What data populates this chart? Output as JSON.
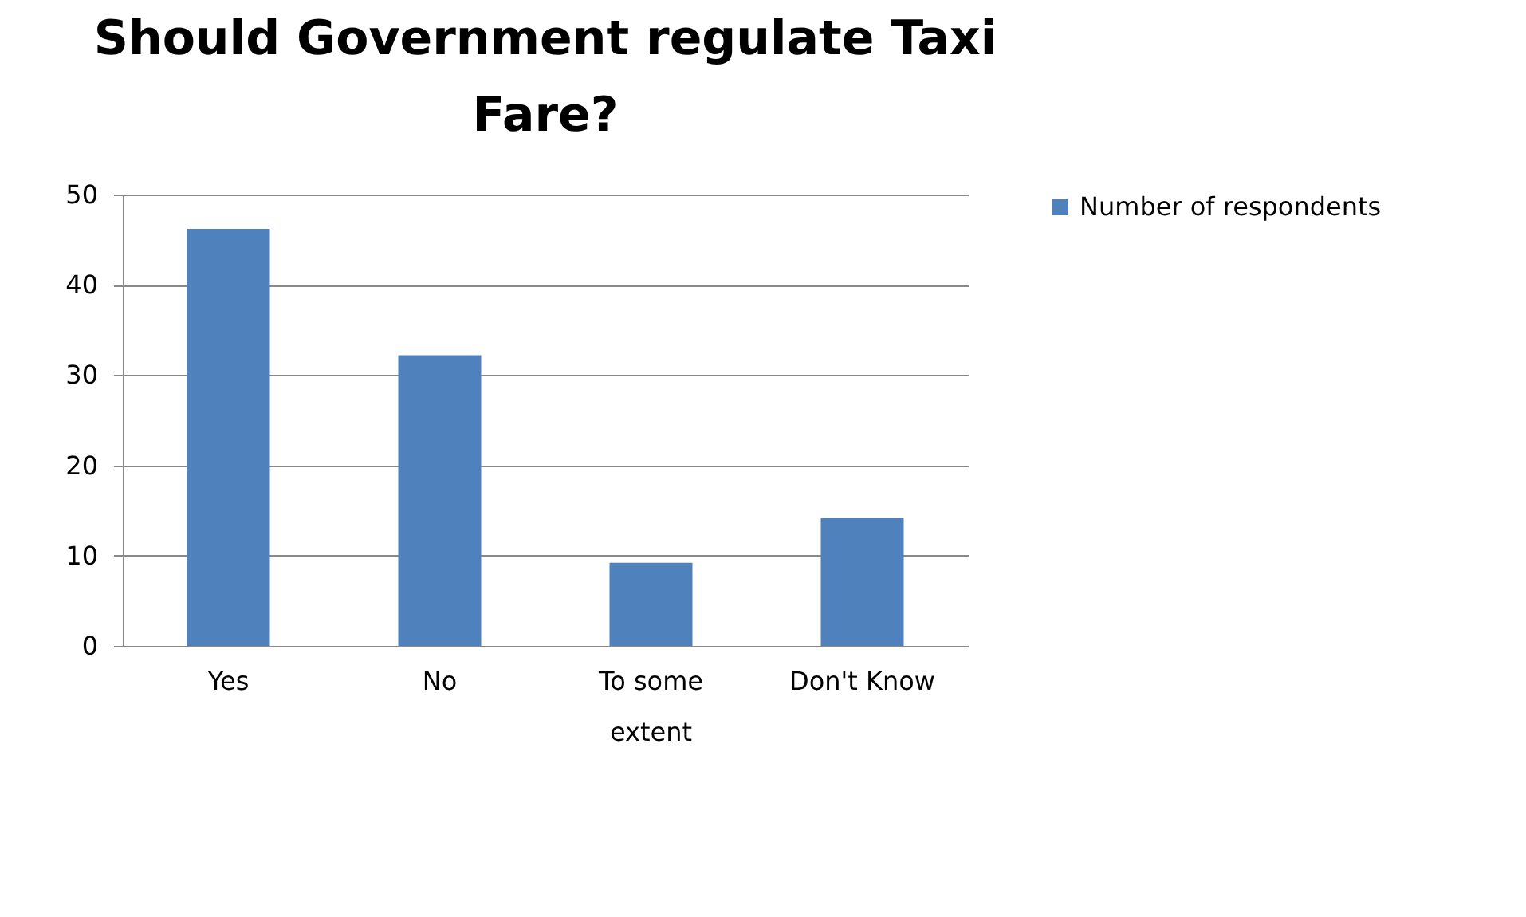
{
  "chart_data": {
    "type": "bar",
    "title": "Should Government regulate Taxi Fare?",
    "categories": [
      "Yes",
      "No",
      "To some extent",
      "Don't Know"
    ],
    "series": [
      {
        "name": "Number of respondents",
        "color": "#4f81bd",
        "values": [
          46.2,
          32.2,
          9.2,
          14.2
        ]
      }
    ],
    "ylim": [
      0,
      50
    ],
    "yticks": [
      0,
      10,
      20,
      30,
      40,
      50
    ],
    "grid": "y",
    "legend": "right"
  }
}
